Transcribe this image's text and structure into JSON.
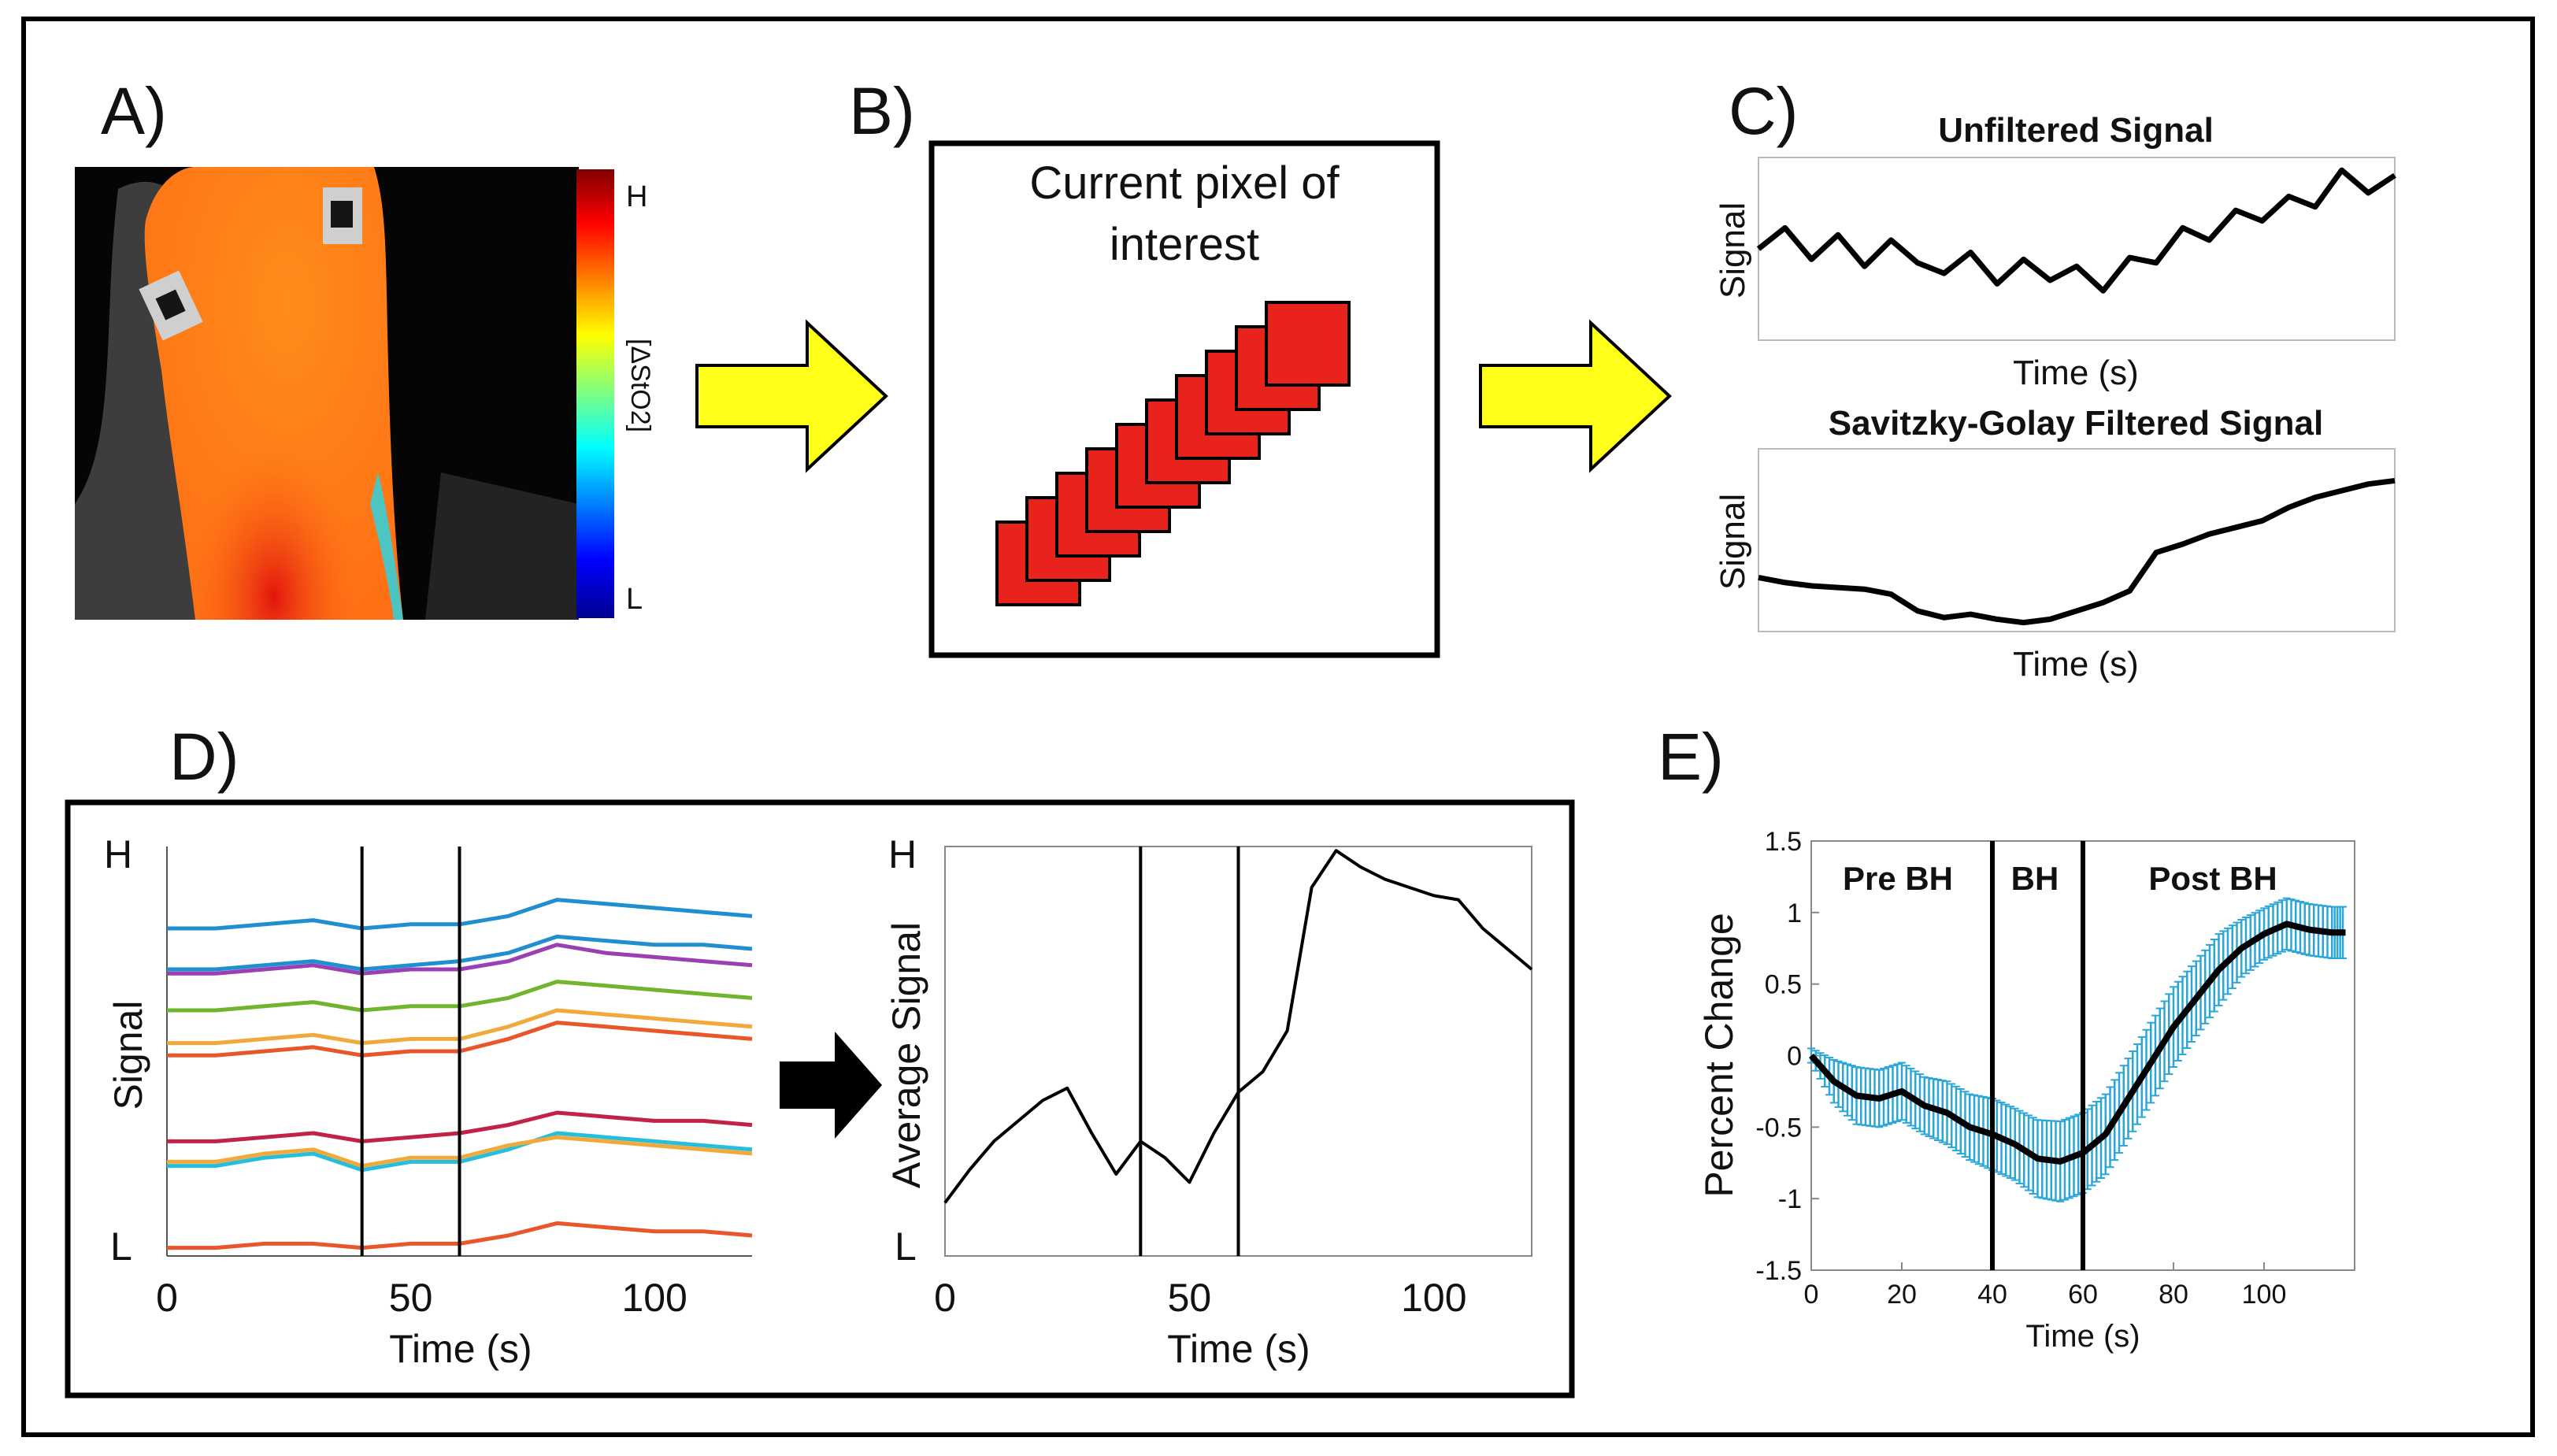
{
  "panels": {
    "a": {
      "label": "A)",
      "colorbar": {
        "high": "H",
        "low": "L",
        "quantity": "[ΔStO2]"
      }
    },
    "b": {
      "label": "B)",
      "caption_line1": "Current pixel of",
      "caption_line2": "interest",
      "stack_count": 10,
      "stack_color": "#e8231c"
    },
    "c": {
      "label": "C)",
      "top_title": "Unfiltered Signal",
      "bottom_title": "Savitzky-Golay Filtered Signal",
      "ylabel": "Signal",
      "xlabel": "Time (s)"
    },
    "d": {
      "label": "D)",
      "high": "H",
      "low": "L",
      "left_ylabel": "Signal",
      "right_ylabel": "Average Signal",
      "xlabel": "Time (s)",
      "xticks": [
        "0",
        "50",
        "100"
      ]
    },
    "e": {
      "label": "E)",
      "phase_labels": [
        "Pre BH",
        "BH",
        "Post BH"
      ],
      "errorbar_color": "#2aa7d8"
    }
  },
  "chart_data": [
    {
      "type": "line",
      "panel": "C-top",
      "title": "Unfiltered Signal",
      "xlabel": "Time (s)",
      "ylabel": "Signal",
      "x": [
        0,
        5,
        10,
        15,
        20,
        25,
        30,
        35,
        40,
        45,
        50,
        55,
        60,
        65,
        70,
        75,
        80,
        85,
        90,
        95,
        100,
        105,
        110,
        115,
        120
      ],
      "values": [
        0.5,
        0.62,
        0.44,
        0.58,
        0.4,
        0.55,
        0.42,
        0.36,
        0.48,
        0.3,
        0.44,
        0.32,
        0.4,
        0.26,
        0.45,
        0.42,
        0.62,
        0.55,
        0.72,
        0.66,
        0.8,
        0.74,
        0.95,
        0.82,
        0.92
      ],
      "xlim": [
        0,
        120
      ],
      "ylim": [
        0,
        1
      ]
    },
    {
      "type": "line",
      "panel": "C-bottom",
      "title": "Savitzky-Golay Filtered Signal",
      "xlabel": "Time (s)",
      "ylabel": "Signal",
      "x": [
        0,
        5,
        10,
        15,
        20,
        25,
        30,
        35,
        40,
        45,
        50,
        55,
        60,
        65,
        70,
        75,
        80,
        85,
        90,
        95,
        100,
        105,
        110,
        115,
        120
      ],
      "values": [
        0.3,
        0.27,
        0.25,
        0.24,
        0.23,
        0.2,
        0.1,
        0.06,
        0.08,
        0.05,
        0.03,
        0.05,
        0.1,
        0.15,
        0.22,
        0.45,
        0.5,
        0.56,
        0.6,
        0.64,
        0.72,
        0.78,
        0.82,
        0.86,
        0.88
      ],
      "xlim": [
        0,
        120
      ],
      "ylim": [
        0,
        1
      ]
    },
    {
      "type": "line",
      "panel": "D-left",
      "xlabel": "Time (s)",
      "ylabel": "Signal",
      "xlim": [
        0,
        120
      ],
      "ylim": [
        0,
        1
      ],
      "xticks": [
        0,
        50,
        100
      ],
      "vlines": [
        40,
        60
      ],
      "x": [
        0,
        10,
        20,
        30,
        40,
        50,
        60,
        70,
        80,
        90,
        100,
        110,
        120
      ],
      "series": [
        {
          "color": "#1f8fcf",
          "values": [
            0.8,
            0.8,
            0.81,
            0.82,
            0.8,
            0.81,
            0.81,
            0.83,
            0.87,
            0.86,
            0.85,
            0.84,
            0.83
          ]
        },
        {
          "color": "#1f8fcf",
          "values": [
            0.7,
            0.7,
            0.71,
            0.72,
            0.7,
            0.71,
            0.72,
            0.74,
            0.78,
            0.77,
            0.76,
            0.76,
            0.75
          ]
        },
        {
          "color": "#9b3fb5",
          "values": [
            0.69,
            0.69,
            0.7,
            0.71,
            0.69,
            0.7,
            0.7,
            0.72,
            0.76,
            0.74,
            0.73,
            0.72,
            0.71
          ]
        },
        {
          "color": "#71b52e",
          "values": [
            0.6,
            0.6,
            0.61,
            0.62,
            0.6,
            0.61,
            0.61,
            0.63,
            0.67,
            0.66,
            0.65,
            0.64,
            0.63
          ]
        },
        {
          "color": "#f2a93b",
          "values": [
            0.52,
            0.52,
            0.53,
            0.54,
            0.52,
            0.53,
            0.53,
            0.56,
            0.6,
            0.59,
            0.58,
            0.57,
            0.56
          ]
        },
        {
          "color": "#e8562a",
          "values": [
            0.49,
            0.49,
            0.5,
            0.51,
            0.49,
            0.5,
            0.5,
            0.53,
            0.57,
            0.56,
            0.55,
            0.54,
            0.53
          ]
        },
        {
          "color": "#c22148",
          "values": [
            0.28,
            0.28,
            0.29,
            0.3,
            0.28,
            0.29,
            0.3,
            0.32,
            0.35,
            0.34,
            0.33,
            0.33,
            0.32
          ]
        },
        {
          "color": "#27bedc",
          "values": [
            0.22,
            0.22,
            0.24,
            0.25,
            0.21,
            0.23,
            0.23,
            0.26,
            0.3,
            0.29,
            0.28,
            0.27,
            0.26
          ]
        },
        {
          "color": "#f2a93b",
          "values": [
            0.23,
            0.23,
            0.25,
            0.26,
            0.22,
            0.24,
            0.24,
            0.27,
            0.29,
            0.28,
            0.27,
            0.26,
            0.25
          ]
        },
        {
          "color": "#e8562a",
          "values": [
            0.02,
            0.02,
            0.03,
            0.03,
            0.02,
            0.03,
            0.03,
            0.05,
            0.08,
            0.07,
            0.06,
            0.06,
            0.05
          ]
        }
      ]
    },
    {
      "type": "line",
      "panel": "D-right",
      "xlabel": "Time (s)",
      "ylabel": "Average Signal",
      "xlim": [
        0,
        120
      ],
      "ylim": [
        0,
        1
      ],
      "xticks": [
        0,
        50,
        100
      ],
      "vlines": [
        40,
        60
      ],
      "x": [
        0,
        5,
        10,
        15,
        20,
        25,
        30,
        35,
        40,
        45,
        50,
        55,
        60,
        65,
        70,
        75,
        80,
        85,
        90,
        95,
        100,
        105,
        110,
        115,
        120
      ],
      "values": [
        0.13,
        0.21,
        0.28,
        0.33,
        0.38,
        0.41,
        0.3,
        0.2,
        0.28,
        0.24,
        0.18,
        0.3,
        0.4,
        0.45,
        0.55,
        0.9,
        0.99,
        0.95,
        0.92,
        0.9,
        0.88,
        0.87,
        0.8,
        0.75,
        0.7
      ]
    },
    {
      "type": "line",
      "panel": "E",
      "xlabel": "Time (s)",
      "ylabel": "Percent Change",
      "xlim": [
        0,
        120
      ],
      "ylim": [
        -1.5,
        1.5
      ],
      "xticks": [
        0,
        20,
        40,
        60,
        80,
        100
      ],
      "yticks": [
        -1.5,
        -1,
        -0.5,
        0,
        0.5,
        1,
        1.5
      ],
      "vlines": [
        40,
        60
      ],
      "x": [
        0,
        5,
        10,
        15,
        20,
        25,
        30,
        35,
        40,
        45,
        50,
        55,
        60,
        65,
        70,
        75,
        80,
        85,
        90,
        95,
        100,
        105,
        110,
        115,
        118
      ],
      "values": [
        0,
        -0.18,
        -0.28,
        -0.3,
        -0.25,
        -0.35,
        -0.4,
        -0.5,
        -0.55,
        -0.62,
        -0.72,
        -0.74,
        -0.68,
        -0.55,
        -0.3,
        -0.05,
        0.2,
        0.4,
        0.6,
        0.75,
        0.85,
        0.92,
        0.88,
        0.86,
        0.86
      ],
      "errors": [
        0.05,
        0.15,
        0.2,
        0.2,
        0.2,
        0.2,
        0.22,
        0.23,
        0.25,
        0.25,
        0.27,
        0.28,
        0.28,
        0.28,
        0.28,
        0.28,
        0.28,
        0.26,
        0.25,
        0.2,
        0.18,
        0.18,
        0.18,
        0.18,
        0.18
      ]
    }
  ]
}
